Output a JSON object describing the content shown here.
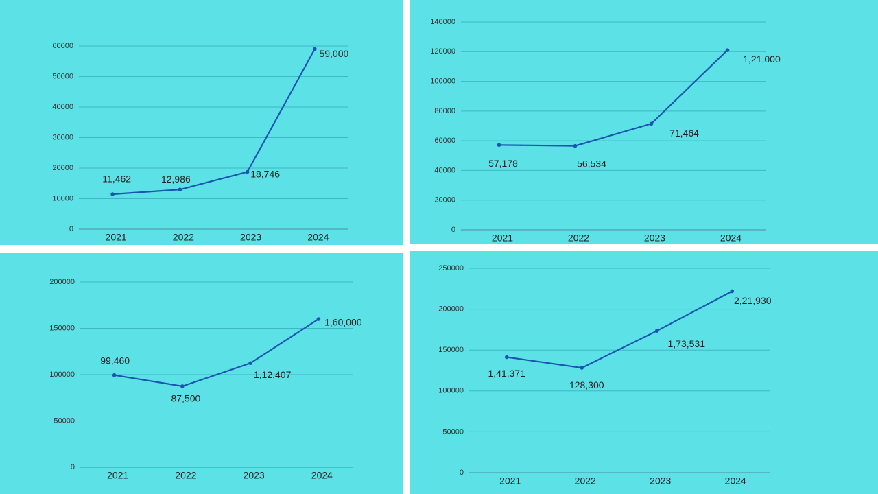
{
  "chart_data": [
    {
      "type": "line",
      "categories": [
        "2021",
        "2022",
        "2023",
        "2024"
      ],
      "values": [
        11462,
        12986,
        18746,
        59000
      ],
      "value_labels": [
        "11,462",
        "12,986",
        "18,746",
        "59,000"
      ],
      "color": "#1a56b0",
      "ylim": [
        0,
        60000
      ],
      "yticks": [
        0,
        10000,
        20000,
        30000,
        40000,
        50000,
        60000
      ],
      "grid": true
    },
    {
      "type": "line",
      "categories": [
        "2021",
        "2022",
        "2023",
        "2024"
      ],
      "values": [
        57178,
        56534,
        71464,
        121000
      ],
      "value_labels": [
        "57,178",
        "56,534",
        "71,464",
        "1,21,000"
      ],
      "color": "#1a56b0",
      "ylim": [
        0,
        140000
      ],
      "yticks": [
        0,
        20000,
        40000,
        60000,
        80000,
        100000,
        120000,
        140000
      ],
      "grid": true
    },
    {
      "type": "line",
      "categories": [
        "2021",
        "2022",
        "2023",
        "2024"
      ],
      "values": [
        99460,
        87500,
        112407,
        160000
      ],
      "value_labels": [
        "99,460",
        "87,500",
        "1,12,407",
        "1,60,000"
      ],
      "color": "#1a56b0",
      "ylim": [
        0,
        200000
      ],
      "yticks": [
        0,
        50000,
        100000,
        150000,
        200000
      ],
      "grid": true
    },
    {
      "type": "line",
      "categories": [
        "2021",
        "2022",
        "2023",
        "2024"
      ],
      "values": [
        141371,
        128300,
        173531,
        221930
      ],
      "value_labels": [
        "1,41,371",
        "128,300",
        "1,73,531",
        "2,21,930"
      ],
      "color": "#1a56b0",
      "ylim": [
        0,
        250000
      ],
      "yticks": [
        0,
        50000,
        100000,
        150000,
        200000,
        250000
      ],
      "grid": true
    }
  ]
}
